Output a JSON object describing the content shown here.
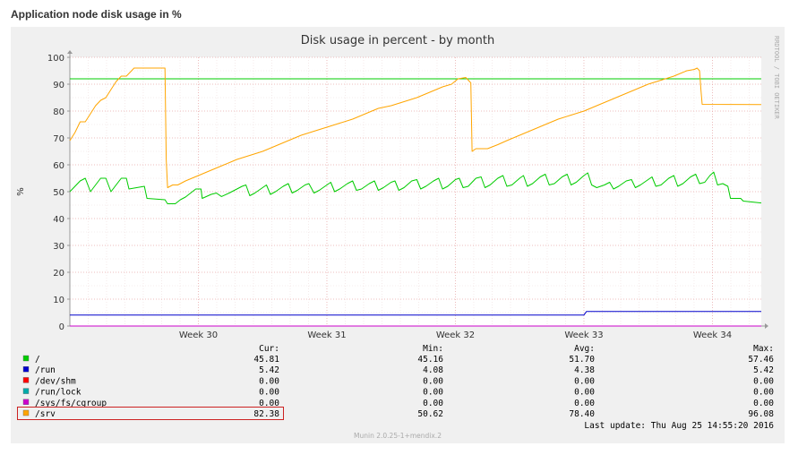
{
  "page": {
    "heading": "Application node disk usage in %"
  },
  "graph": {
    "title": "Disk usage in percent - by month",
    "watermark": "RRDTOOL / TOBI OETIKER",
    "footer": "Munin 2.0.25-1+mendix.2",
    "last_update": "Last update:  Thu Aug 25 14:55:20 2016"
  },
  "chart_data": {
    "type": "line",
    "title": "Disk usage in percent - by month",
    "ylabel": "%",
    "ylim": [
      0,
      100
    ],
    "yticks": [
      0,
      10,
      20,
      30,
      40,
      50,
      60,
      70,
      80,
      90,
      100
    ],
    "xlim": [
      0,
      5.38
    ],
    "xticks": [
      {
        "label": "Week 30",
        "x": 1
      },
      {
        "label": "Week 31",
        "x": 2
      },
      {
        "label": "Week 32",
        "x": 3
      },
      {
        "label": "Week 33",
        "x": 4
      },
      {
        "label": "Week 34",
        "x": 5
      }
    ],
    "x_unit": "weeks",
    "grid": true,
    "reference_line": {
      "value": 92,
      "color": "#00cc00"
    },
    "legend_headers": [
      "Cur:",
      "Min:",
      "Avg:",
      "Max:"
    ],
    "series": [
      {
        "name": "/",
        "color": "#00cc00",
        "cur": "45.81",
        "min": "45.16",
        "avg": "51.70",
        "max": "57.46",
        "points": [
          [
            0,
            50
          ],
          [
            0.08,
            54
          ],
          [
            0.12,
            55
          ],
          [
            0.16,
            50
          ],
          [
            0.24,
            55
          ],
          [
            0.28,
            55
          ],
          [
            0.32,
            50
          ],
          [
            0.4,
            55
          ],
          [
            0.44,
            55
          ],
          [
            0.46,
            51
          ],
          [
            0.58,
            52
          ],
          [
            0.6,
            47.5
          ],
          [
            0.74,
            47
          ],
          [
            0.76,
            45.5
          ],
          [
            0.82,
            45.5
          ],
          [
            0.86,
            47
          ],
          [
            0.9,
            48
          ],
          [
            0.98,
            51
          ],
          [
            1.02,
            51
          ],
          [
            1.03,
            47.5
          ],
          [
            1.1,
            49
          ],
          [
            1.14,
            49.5
          ],
          [
            1.18,
            48.2
          ],
          [
            1.24,
            49.5
          ],
          [
            1.28,
            50.5
          ],
          [
            1.34,
            52
          ],
          [
            1.37,
            52.5
          ],
          [
            1.4,
            48.5
          ],
          [
            1.44,
            49.5
          ],
          [
            1.5,
            51.5
          ],
          [
            1.53,
            52.5
          ],
          [
            1.56,
            49
          ],
          [
            1.6,
            50
          ],
          [
            1.66,
            52
          ],
          [
            1.7,
            53
          ],
          [
            1.73,
            49.5
          ],
          [
            1.77,
            50.5
          ],
          [
            1.83,
            52.5
          ],
          [
            1.86,
            53
          ],
          [
            1.9,
            49.5
          ],
          [
            1.94,
            50.5
          ],
          [
            2,
            52.5
          ],
          [
            2.03,
            53.5
          ],
          [
            2.06,
            50
          ],
          [
            2.1,
            51
          ],
          [
            2.16,
            53
          ],
          [
            2.2,
            54
          ],
          [
            2.23,
            50.5
          ],
          [
            2.27,
            51
          ],
          [
            2.33,
            53
          ],
          [
            2.37,
            54
          ],
          [
            2.4,
            50.5
          ],
          [
            2.44,
            51.5
          ],
          [
            2.5,
            53.5
          ],
          [
            2.53,
            54
          ],
          [
            2.56,
            50.5
          ],
          [
            2.6,
            51.5
          ],
          [
            2.66,
            54
          ],
          [
            2.7,
            54.5
          ],
          [
            2.73,
            51
          ],
          [
            2.77,
            52
          ],
          [
            2.83,
            54
          ],
          [
            2.87,
            55
          ],
          [
            2.9,
            51
          ],
          [
            2.94,
            52
          ],
          [
            3,
            54.5
          ],
          [
            3.03,
            55
          ],
          [
            3.06,
            51.5
          ],
          [
            3.1,
            52
          ],
          [
            3.16,
            55
          ],
          [
            3.2,
            55.5
          ],
          [
            3.23,
            51.5
          ],
          [
            3.27,
            52.5
          ],
          [
            3.33,
            55
          ],
          [
            3.37,
            56
          ],
          [
            3.4,
            52
          ],
          [
            3.44,
            52.5
          ],
          [
            3.5,
            55
          ],
          [
            3.53,
            56
          ],
          [
            3.56,
            52
          ],
          [
            3.6,
            53
          ],
          [
            3.66,
            55.5
          ],
          [
            3.7,
            56.5
          ],
          [
            3.73,
            52.5
          ],
          [
            3.77,
            53
          ],
          [
            3.83,
            55.5
          ],
          [
            3.87,
            56.5
          ],
          [
            3.9,
            52.5
          ],
          [
            3.94,
            53.5
          ],
          [
            4,
            56
          ],
          [
            4.03,
            57
          ],
          [
            4.06,
            52.5
          ],
          [
            4.1,
            51.5
          ],
          [
            4.16,
            52.5
          ],
          [
            4.2,
            53.5
          ],
          [
            4.23,
            51
          ],
          [
            4.27,
            52
          ],
          [
            4.33,
            54
          ],
          [
            4.37,
            54.5
          ],
          [
            4.4,
            51.5
          ],
          [
            4.44,
            52.5
          ],
          [
            4.5,
            54.5
          ],
          [
            4.53,
            55.5
          ],
          [
            4.56,
            52
          ],
          [
            4.6,
            52.5
          ],
          [
            4.66,
            55
          ],
          [
            4.7,
            56
          ],
          [
            4.73,
            52
          ],
          [
            4.77,
            53
          ],
          [
            4.83,
            55.5
          ],
          [
            4.87,
            56.5
          ],
          [
            4.9,
            53
          ],
          [
            4.94,
            53.5
          ],
          [
            4.98,
            56
          ],
          [
            5.01,
            57.3
          ],
          [
            5.04,
            52.5
          ],
          [
            5.08,
            53
          ],
          [
            5.12,
            52
          ],
          [
            5.14,
            47.5
          ],
          [
            5.22,
            47.5
          ],
          [
            5.24,
            46.5
          ],
          [
            5.38,
            45.8
          ]
        ]
      },
      {
        "name": "/run",
        "color": "#0000cc",
        "cur": "5.42",
        "min": "4.08",
        "avg": "4.38",
        "max": "5.42",
        "points": [
          [
            0,
            4.1
          ],
          [
            4.0,
            4.1
          ],
          [
            4.02,
            5.4
          ],
          [
            5.38,
            5.4
          ]
        ]
      },
      {
        "name": "/dev/shm",
        "color": "#ff0000",
        "cur": "0.00",
        "min": "0.00",
        "avg": "0.00",
        "max": "0.00",
        "points": [
          [
            0,
            0
          ],
          [
            5.38,
            0
          ]
        ]
      },
      {
        "name": "/run/lock",
        "color": "#00aaaa",
        "cur": "0.00",
        "min": "0.00",
        "avg": "0.00",
        "max": "0.00",
        "points": [
          [
            0,
            0
          ],
          [
            5.38,
            0
          ]
        ]
      },
      {
        "name": "/sys/fs/cgroup",
        "color": "#cc00cc",
        "cur": "0.00",
        "min": "0.00",
        "avg": "0.00",
        "max": "0.00",
        "points": [
          [
            0,
            0
          ],
          [
            5.38,
            0
          ]
        ]
      },
      {
        "name": "/srv",
        "color": "#ffa500",
        "cur": "82.38",
        "min": "50.62",
        "avg": "78.40",
        "max": "96.08",
        "highlighted": true,
        "points": [
          [
            0,
            69
          ],
          [
            0.04,
            72
          ],
          [
            0.08,
            76
          ],
          [
            0.12,
            76
          ],
          [
            0.16,
            79
          ],
          [
            0.2,
            82
          ],
          [
            0.24,
            84
          ],
          [
            0.28,
            85
          ],
          [
            0.32,
            88
          ],
          [
            0.36,
            91
          ],
          [
            0.4,
            93
          ],
          [
            0.44,
            93
          ],
          [
            0.48,
            95
          ],
          [
            0.5,
            96
          ],
          [
            0.62,
            96
          ],
          [
            0.74,
            96
          ],
          [
            0.75,
            62
          ],
          [
            0.76,
            51.5
          ],
          [
            0.8,
            52.5
          ],
          [
            0.84,
            52.5
          ],
          [
            0.9,
            54
          ],
          [
            1.0,
            56
          ],
          [
            1.1,
            58
          ],
          [
            1.2,
            60
          ],
          [
            1.3,
            62
          ],
          [
            1.4,
            63.5
          ],
          [
            1.5,
            65
          ],
          [
            1.6,
            67
          ],
          [
            1.7,
            69
          ],
          [
            1.8,
            71
          ],
          [
            1.9,
            72.5
          ],
          [
            2.0,
            74
          ],
          [
            2.1,
            75.5
          ],
          [
            2.2,
            77
          ],
          [
            2.3,
            79
          ],
          [
            2.4,
            81
          ],
          [
            2.5,
            82
          ],
          [
            2.6,
            83.5
          ],
          [
            2.7,
            85
          ],
          [
            2.8,
            87
          ],
          [
            2.9,
            89
          ],
          [
            2.97,
            90
          ],
          [
            3.02,
            92
          ],
          [
            3.08,
            92.5
          ],
          [
            3.12,
            90.5
          ],
          [
            3.13,
            65
          ],
          [
            3.16,
            66
          ],
          [
            3.25,
            66
          ],
          [
            3.33,
            67.5
          ],
          [
            3.4,
            69
          ],
          [
            3.5,
            71
          ],
          [
            3.6,
            73
          ],
          [
            3.7,
            75
          ],
          [
            3.8,
            77
          ],
          [
            3.9,
            78.5
          ],
          [
            4.0,
            80
          ],
          [
            4.1,
            82
          ],
          [
            4.2,
            84
          ],
          [
            4.3,
            86
          ],
          [
            4.4,
            88
          ],
          [
            4.5,
            90
          ],
          [
            4.6,
            91.5
          ],
          [
            4.7,
            93
          ],
          [
            4.8,
            95
          ],
          [
            4.86,
            95.5
          ],
          [
            4.88,
            96
          ],
          [
            4.9,
            95
          ],
          [
            4.91,
            88
          ],
          [
            4.92,
            82.5
          ],
          [
            5.38,
            82.4
          ]
        ]
      }
    ]
  }
}
